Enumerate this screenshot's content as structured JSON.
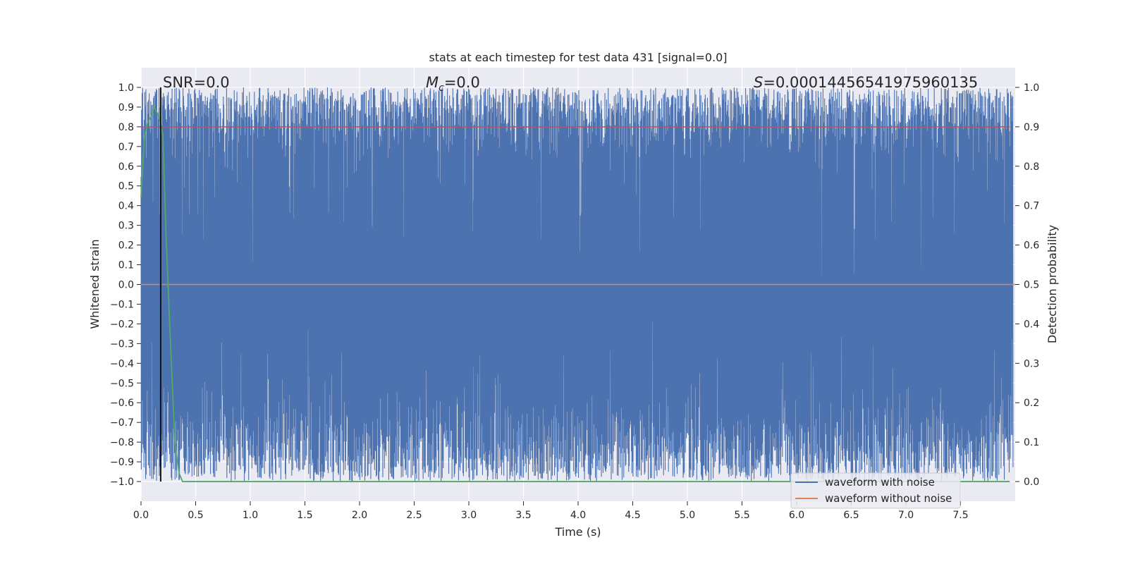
{
  "chart_data": {
    "type": "line",
    "title": "stats at each timestep for test data 431 [signal=0.0]",
    "xlabel": "Time (s)",
    "ylabel": "Whitened strain",
    "y2label": "Detection probability",
    "xlim": [
      0.0,
      8.0
    ],
    "ylim": [
      -1.1,
      1.1
    ],
    "y2lim": [
      -0.05,
      1.05
    ],
    "xticks": [
      0.0,
      0.5,
      1.0,
      1.5,
      2.0,
      2.5,
      3.0,
      3.5,
      4.0,
      4.5,
      5.0,
      5.5,
      6.0,
      6.5,
      7.0,
      7.5
    ],
    "yticks": [
      1.0,
      0.9,
      0.8,
      0.7,
      0.6,
      0.5,
      0.4,
      0.3,
      0.2,
      0.1,
      0.0,
      -0.1,
      -0.2,
      -0.3,
      -0.4,
      -0.5,
      -0.6,
      -0.7,
      -0.8,
      -0.9,
      -1.0
    ],
    "y2ticks": [
      0.0,
      0.1,
      0.2,
      0.3,
      0.4,
      0.5,
      0.6,
      0.7,
      0.8,
      0.9,
      1.0
    ],
    "grid": true,
    "legend_placement": "lower-right",
    "annotations": {
      "snr": "SNR=0.0",
      "mc_symbol": "M",
      "mc_sub": "c",
      "mc_value": "=0.0",
      "s_symbol": "S",
      "s_value": "=0.00014456541975960135"
    },
    "vline_x": 0.18,
    "series": [
      {
        "name": "waveform with noise",
        "color": "#4c72b0",
        "description_values": "whitened noise oscillating between roughly -1.0 and 1.0 over 0–8 s"
      },
      {
        "name": "waveform without noise",
        "color": "#dd8452",
        "values_x": [
          0.0,
          8.0
        ],
        "values_y": [
          0.0,
          0.0
        ]
      },
      {
        "name": "",
        "color": "#55a868",
        "axis": "right",
        "values_x": [
          0.0,
          0.03,
          0.06,
          0.1,
          0.12,
          0.14,
          0.17,
          0.2,
          0.23,
          0.27,
          0.31,
          0.35,
          0.38,
          0.5,
          1.0,
          2.0,
          3.0,
          4.0,
          5.0,
          6.0,
          7.0,
          7.95
        ],
        "values_y": [
          0.72,
          0.87,
          0.91,
          0.93,
          0.95,
          0.94,
          0.92,
          0.88,
          0.62,
          0.35,
          0.1,
          0.02,
          0.0,
          0.0,
          0.0,
          0.0,
          0.0,
          0.0,
          0.0,
          0.0,
          0.0,
          0.0
        ]
      },
      {
        "name": "",
        "color": "#c44e52",
        "axis": "right",
        "values_x": [
          0.0,
          7.95
        ],
        "values_y": [
          0.9,
          0.9
        ]
      }
    ]
  },
  "legend": {
    "items": [
      {
        "label": "waveform with noise",
        "color": "#4c72b0"
      },
      {
        "label": "waveform without noise",
        "color": "#dd8452"
      }
    ]
  }
}
